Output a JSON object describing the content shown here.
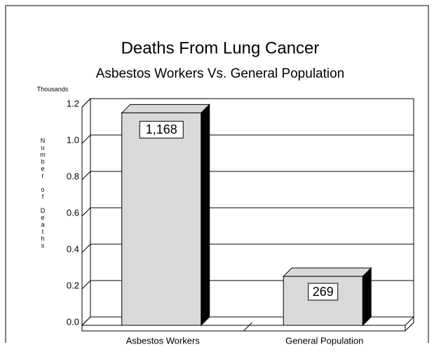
{
  "chart_data": {
    "type": "bar3d",
    "title": "Deaths From Lung Cancer",
    "subtitle": "Asbestos Workers Vs. General Population",
    "unit_label": "Thousands",
    "y_label": "Number of Deaths",
    "categories": [
      "Asbestos Workers",
      "General Population"
    ],
    "values": [
      1.168,
      0.269
    ],
    "value_labels": [
      "1,168",
      "269"
    ],
    "color": "#d9d9d9",
    "ylim": [
      0,
      1.2
    ],
    "yticks": [
      {
        "value": 0,
        "label": "0.0"
      },
      0.2,
      0.4,
      0.6,
      0.8,
      {
        "value": 1,
        "label": "1.0"
      },
      1.2
    ],
    "grid": true
  }
}
